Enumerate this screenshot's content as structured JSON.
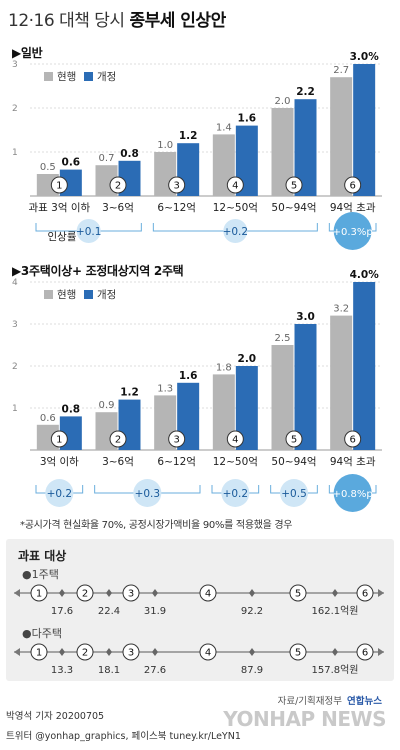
{
  "title_normal": "12·16 대책 당시",
  "title_bold": "종부세 인상안",
  "legend": {
    "current": "현행",
    "revised": "개정"
  },
  "colors": {
    "current": "#b5b5b5",
    "revised": "#2b6cb5",
    "badge_light": "#cfe6f6",
    "badge_dark": "#5aa9dd",
    "axis_text": "#888888"
  },
  "chart_data": [
    {
      "type": "bar",
      "section_title": "▶일반",
      "categories": [
        "과표 3억 이하",
        "3~6억",
        "6~12억",
        "12~50억",
        "50~94억",
        "94억 초과"
      ],
      "category_markers": [
        "①",
        "②",
        "③",
        "④",
        "⑤",
        "⑥"
      ],
      "series": [
        {
          "name": "현행",
          "values": [
            0.5,
            0.7,
            1.0,
            1.4,
            2.0,
            2.7
          ],
          "labels": [
            "0.5",
            "0.7",
            "1.0",
            "1.4",
            "2.0",
            "2.7"
          ]
        },
        {
          "name": "개정",
          "values": [
            0.6,
            0.8,
            1.2,
            1.6,
            2.2,
            3.0
          ],
          "labels": [
            "0.6",
            "0.8",
            "1.2",
            "1.6",
            "2.2",
            "3.0%"
          ]
        }
      ],
      "yticks": [
        "1",
        "2",
        "3"
      ],
      "ylim": [
        0,
        3
      ],
      "increase_label": "인상률",
      "increases": [
        {
          "label": "+0.1",
          "range": [
            0,
            1
          ]
        },
        {
          "label": "+0.2",
          "range": [
            2,
            4
          ]
        },
        {
          "label": "+0.3%p",
          "range": [
            5,
            5
          ]
        }
      ]
    },
    {
      "type": "bar",
      "section_title": "▶3주택이상+ 조정대상지역 2주택",
      "categories": [
        "3억 이하",
        "3~6억",
        "6~12억",
        "12~50억",
        "50~94억",
        "94억 초과"
      ],
      "category_markers": [
        "①",
        "②",
        "③",
        "④",
        "⑤",
        "⑥"
      ],
      "series": [
        {
          "name": "현행",
          "values": [
            0.6,
            0.9,
            1.3,
            1.8,
            2.5,
            3.2
          ],
          "labels": [
            "0.6",
            "0.9",
            "1.3",
            "1.8",
            "2.5",
            "3.2"
          ]
        },
        {
          "name": "개정",
          "values": [
            0.8,
            1.2,
            1.6,
            2.0,
            3.0,
            4.0
          ],
          "labels": [
            "0.8",
            "1.2",
            "1.6",
            "2.0",
            "3.0",
            "4.0%"
          ]
        }
      ],
      "yticks": [
        "1",
        "2",
        "3",
        "4"
      ],
      "ylim": [
        0,
        4
      ],
      "increases": [
        {
          "label": "+0.2",
          "range": [
            0,
            0
          ]
        },
        {
          "label": "+0.3",
          "range": [
            1,
            2
          ]
        },
        {
          "label": "+0.2",
          "range": [
            3,
            3
          ]
        },
        {
          "label": "+0.5",
          "range": [
            4,
            4
          ]
        },
        {
          "label": "+0.8%p",
          "range": [
            5,
            5
          ]
        }
      ]
    }
  ],
  "footnote": "*공시가격 현실화율 70%, 공정시장가액비율 90%를 적용했을 경우",
  "tax_base": {
    "title": "과표 대상",
    "rows": [
      {
        "label": "●1주택",
        "markers": [
          "①",
          "②",
          "③",
          "④",
          "⑤",
          "⑥"
        ],
        "thresholds": [
          "17.6",
          "22.4",
          "31.9",
          "92.2",
          "162.1억원"
        ]
      },
      {
        "label": "●다주택",
        "markers": [
          "①",
          "②",
          "③",
          "④",
          "⑤",
          "⑥"
        ],
        "thresholds": [
          "13.3",
          "18.1",
          "27.6",
          "87.9",
          "157.8억원"
        ]
      }
    ]
  },
  "source": "자료/기획재정부",
  "credit": "박영석 기자  20200705",
  "sns": "트위터 @yonhap_graphics, 페이스북 tuney.kr/LeYN1",
  "logo_text": "연합뉴스",
  "watermark": "YONHAP NEWS"
}
